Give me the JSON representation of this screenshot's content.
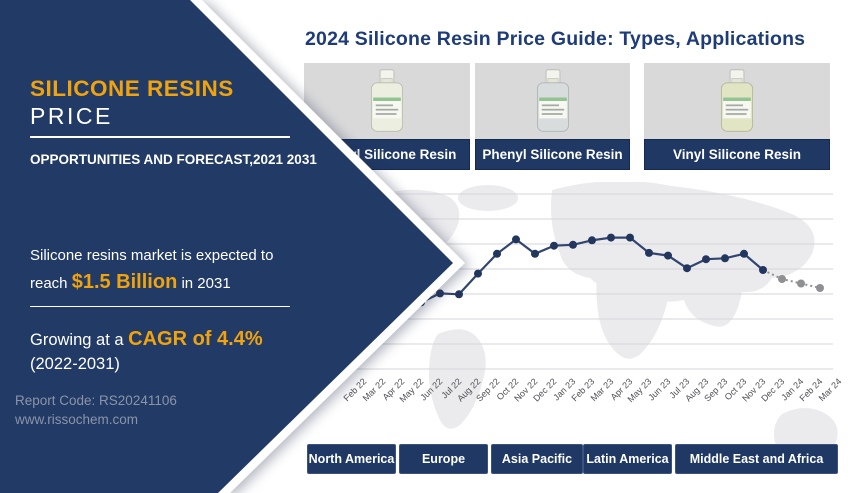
{
  "colors": {
    "panel_navy": "#213A66",
    "bar_navy": "#1F3864",
    "accent_orange": "#F0A30C",
    "title_blue": "#1E3C78",
    "muted_gray": "#8C94A8"
  },
  "left_panel": {
    "title_line1": "SILICONE RESINS",
    "title_line2": "PRICE",
    "subtitle": "OPPORTUNITIES AND FORECAST,2021 2031",
    "market_pre": "Silicone resins market is expected to reach ",
    "market_highlight": "$1.5 Billion",
    "market_post": " in 2031",
    "growth_pre": "Growing at a ",
    "growth_highlight": "CAGR of 4.4%",
    "growth_line2": "(2022-2031)",
    "report_code": "Report Code: RS20241106",
    "website": "www.rissochem.com"
  },
  "header": {
    "title": "2024 Silicone Resin Price Guide: Types, Applications"
  },
  "products": [
    {
      "label": "Methyl Silicone Resin"
    },
    {
      "label": "Phenyl Silicone Resin"
    },
    {
      "label": "Vinyl Silicone Resin"
    }
  ],
  "regions": [
    "North America",
    "Europe",
    "Asia Pacific",
    "Latin America",
    "Middle East and Africa"
  ],
  "chart_data": {
    "type": "line",
    "title": "",
    "xlabel": "",
    "ylabel": "",
    "categories": [
      "Feb 22",
      "Mar 22",
      "Apr 22",
      "May 22",
      "Jun 22",
      "Jul 22",
      "Aug 22",
      "Sep 22",
      "Oct 22",
      "Nov 22",
      "Dec 22",
      "Jan 23",
      "Feb 23",
      "Mar 23",
      "Apr 23",
      "May 23",
      "Jun 23",
      "Jul 23",
      "Aug 23",
      "Sep 23",
      "Oct 23",
      "Nov 23",
      "Dec 23",
      "Jan 24",
      "Feb 24",
      "Mar 24"
    ],
    "values": [
      null,
      null,
      null,
      37,
      42,
      41.5,
      53,
      64,
      72,
      64,
      68.5,
      69,
      71.5,
      73,
      73,
      64.5,
      63,
      56,
      61,
      61.5,
      64,
      55,
      50,
      47.5,
      45,
      null
    ],
    "forecast_start_index": 22,
    "ylim": [
      0,
      100
    ],
    "grid": true,
    "gridline_count": 8,
    "x_label_rotation": -45,
    "line_color": "#31456F",
    "marker_color": "#23365E",
    "forecast_color": "#8E9094",
    "note": "values are estimated price-index readings; last 3 plotted points are gray dotted forecast; leftmost months hidden behind banner"
  }
}
